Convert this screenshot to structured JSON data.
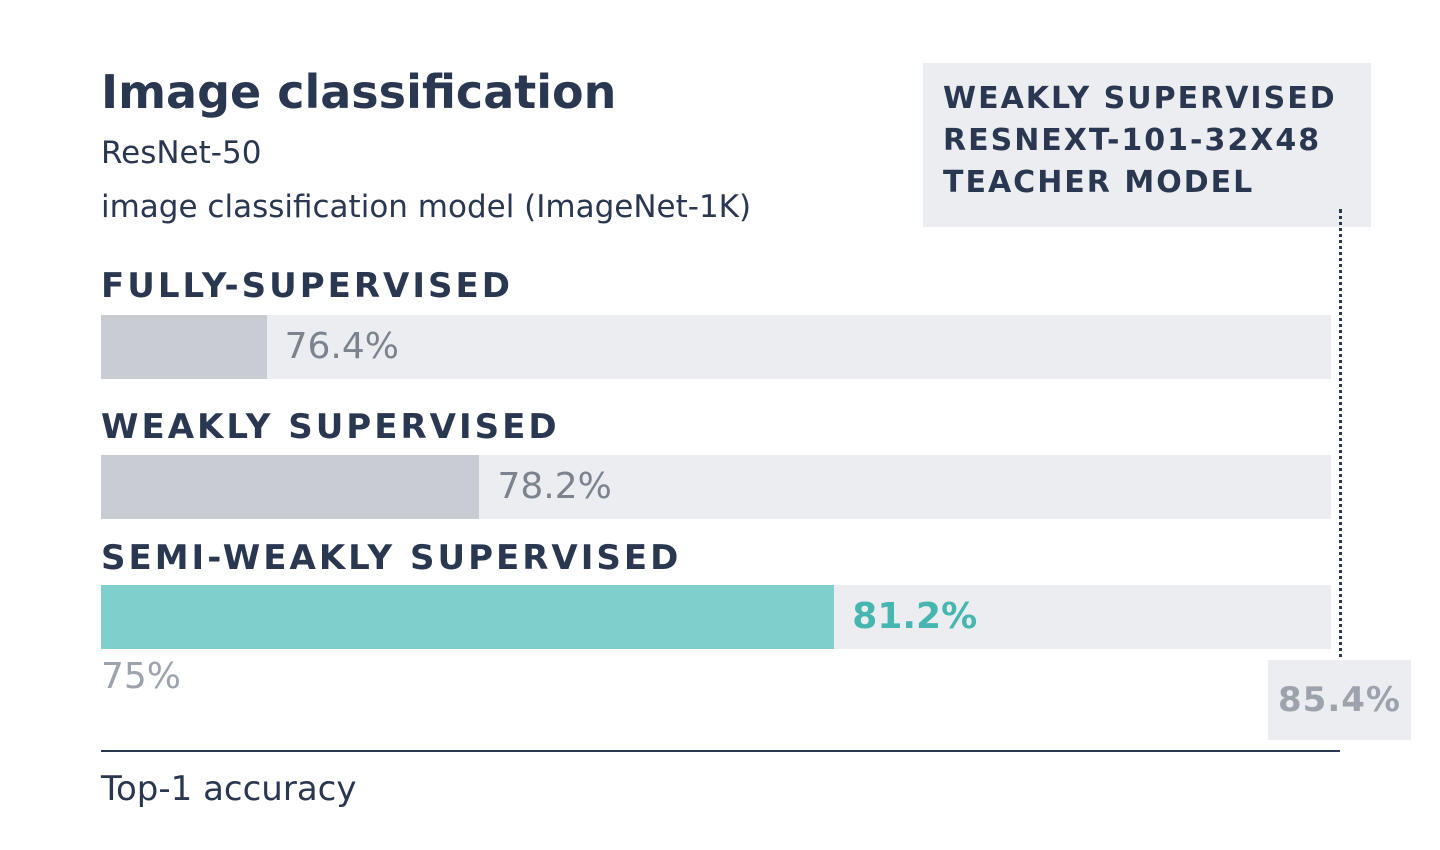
{
  "chart_data": {
    "type": "bar",
    "orientation": "horizontal",
    "title": "Image classification",
    "subtitle_lines": [
      "ResNet-50",
      "image classification model (ImageNet-1K)"
    ],
    "categories": [
      "FULLY-SUPERVISED",
      "WEAKLY SUPERVISED",
      "SEMI-WEAKLY SUPERVISED"
    ],
    "values": [
      76.4,
      78.2,
      81.2
    ],
    "value_labels": [
      "76.4%",
      "78.2%",
      "81.2%"
    ],
    "xlim": [
      75,
      85.4
    ],
    "xmin_label": "75%",
    "xmax_label": "85.4%",
    "xlabel": "Top-1 accuracy",
    "reference": {
      "value": 85.4,
      "label_lines": [
        "WEAKLY SUPERVISED",
        "RESNEXT-101-32X48",
        "TEACHER MODEL"
      ]
    },
    "colors": {
      "bar_default": "#c9ccd3",
      "bar_highlight": "#7fcfcc",
      "value_default": "#7c828e",
      "value_highlight": "#48b6b0",
      "track": "#ebedf0",
      "text": "#2a3750"
    },
    "highlight_index": 2
  }
}
